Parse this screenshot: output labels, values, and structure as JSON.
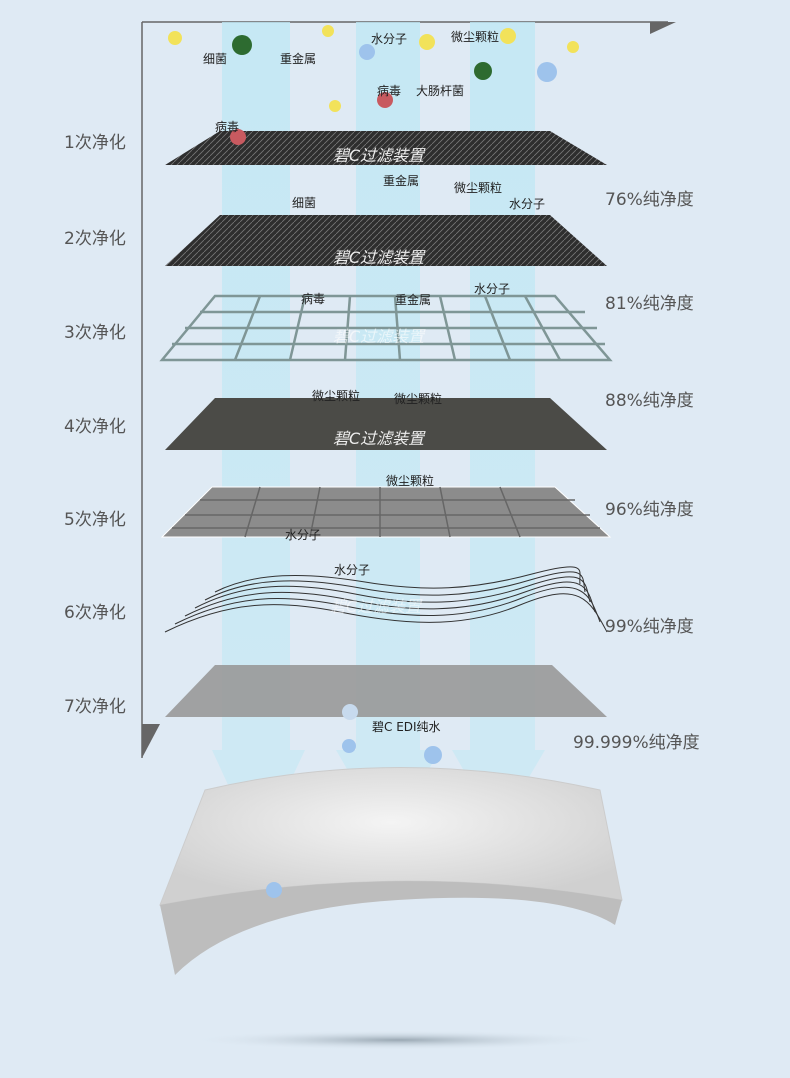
{
  "stages": [
    "1次净化",
    "2次净化",
    "3次净化",
    "4次净化",
    "5次净化",
    "6次净化",
    "7次净化"
  ],
  "purities": [
    "76%纯净度",
    "81%纯净度",
    "88%纯净度",
    "96%纯净度",
    "99%纯净度",
    "99.999%纯净度"
  ],
  "device_label": "碧C过滤装置",
  "final_label": "碧C EDI纯水",
  "particles": {
    "bacteria": "细菌",
    "heavy_metal": "重金属",
    "water_molecule": "水分子",
    "dust": "微尘颗粒",
    "virus": "病毒",
    "ecoli": "大肠杆菌"
  },
  "colors": {
    "background": "#dfeaf4",
    "beam": "#c4e8f2",
    "dark_filter": "#3a3a3a",
    "mesh": "#7f9696",
    "gray_filter": "#8a8a8a"
  }
}
